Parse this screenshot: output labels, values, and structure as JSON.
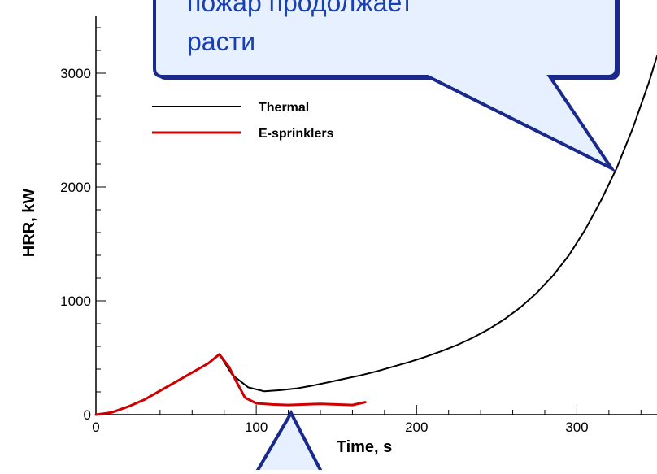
{
  "chart_data": {
    "type": "line",
    "xlabel": "Time, s",
    "ylabel": "HRR, kW",
    "xlim": [
      0,
      350
    ],
    "ylim": [
      0,
      3500
    ],
    "xticks": [
      0,
      100,
      200,
      300
    ],
    "yticks": [
      0,
      1000,
      2000,
      3000
    ],
    "legend_position": "top-left",
    "series": [
      {
        "name": "Thermal",
        "color": "#000000",
        "x": [
          0,
          10,
          20,
          30,
          40,
          50,
          60,
          70,
          77,
          85,
          95,
          105,
          115,
          125,
          135,
          145,
          155,
          165,
          175,
          185,
          195,
          205,
          215,
          225,
          235,
          245,
          255,
          265,
          275,
          285,
          295,
          305,
          315,
          325,
          335,
          345,
          350
        ],
        "y": [
          0,
          20,
          70,
          130,
          210,
          290,
          370,
          450,
          530,
          350,
          240,
          205,
          215,
          230,
          255,
          285,
          315,
          345,
          380,
          420,
          460,
          505,
          555,
          610,
          675,
          750,
          840,
          945,
          1070,
          1220,
          1400,
          1620,
          1880,
          2170,
          2520,
          2920,
          3150
        ]
      },
      {
        "name": "E-sprinklers",
        "color": "#d00000",
        "x": [
          0,
          10,
          20,
          30,
          40,
          50,
          60,
          70,
          77,
          83,
          88,
          93,
          100,
          110,
          120,
          130,
          140,
          150,
          160,
          168
        ],
        "y": [
          0,
          20,
          70,
          130,
          210,
          290,
          370,
          450,
          530,
          420,
          280,
          150,
          100,
          90,
          85,
          90,
          95,
          90,
          85,
          110
        ]
      }
    ]
  },
  "callouts": {
    "top_text": [
      "пожар продолжает",
      "расти"
    ]
  }
}
